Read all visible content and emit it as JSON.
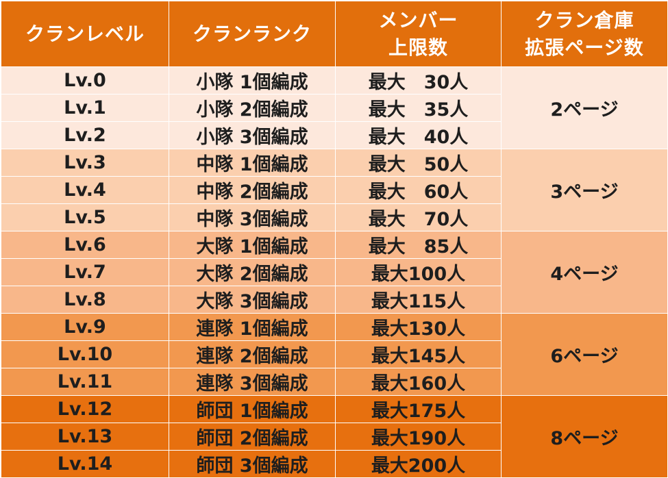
{
  "header": {
    "col1": "クランレベル",
    "col2": "クランランク",
    "col3_line1": "メンバー",
    "col3_line2": "上限数",
    "col4_line1": "クラン倉庫",
    "col4_line2": "拡張ページ数"
  },
  "rows": [
    {
      "level": "Lv.0",
      "rank": "小隊 1個編成",
      "members": "最大　30人"
    },
    {
      "level": "Lv.1",
      "rank": "小隊 2個編成",
      "members": "最大　35人"
    },
    {
      "level": "Lv.2",
      "rank": "小隊 3個編成",
      "members": "最大　40人"
    },
    {
      "level": "Lv.3",
      "rank": "中隊 1個編成",
      "members": "最大　50人"
    },
    {
      "level": "Lv.4",
      "rank": "中隊 2個編成",
      "members": "最大　60人"
    },
    {
      "level": "Lv.5",
      "rank": "中隊 3個編成",
      "members": "最大　70人"
    },
    {
      "level": "Lv.6",
      "rank": "大隊 1個編成",
      "members": "最大　85人"
    },
    {
      "level": "Lv.7",
      "rank": "大隊 2個編成",
      "members": "最大100人"
    },
    {
      "level": "Lv.8",
      "rank": "大隊 3個編成",
      "members": "最大115人"
    },
    {
      "level": "Lv.9",
      "rank": "連隊 1個編成",
      "members": "最大130人"
    },
    {
      "level": "Lv.10",
      "rank": "連隊 2個編成",
      "members": "最大145人"
    },
    {
      "level": "Lv.11",
      "rank": "連隊 3個編成",
      "members": "最大160人"
    },
    {
      "level": "Lv.12",
      "rank": "師団 1個編成",
      "members": "最大175人"
    },
    {
      "level": "Lv.13",
      "rank": "師団 2個編成",
      "members": "最大190人"
    },
    {
      "level": "Lv.14",
      "rank": "師団 3個編成",
      "members": "最大200人"
    }
  ],
  "pages": [
    "2ページ",
    "3ページ",
    "4ページ",
    "6ページ",
    "8ページ"
  ],
  "colors": {
    "header_bg": "#e26f0c",
    "header_text": "#ffffff",
    "group_bg": [
      "#fde8dc",
      "#fbcfae",
      "#f8b78a",
      "#f2984f",
      "#e7700f"
    ],
    "cell_text": "#1e1e1e"
  }
}
